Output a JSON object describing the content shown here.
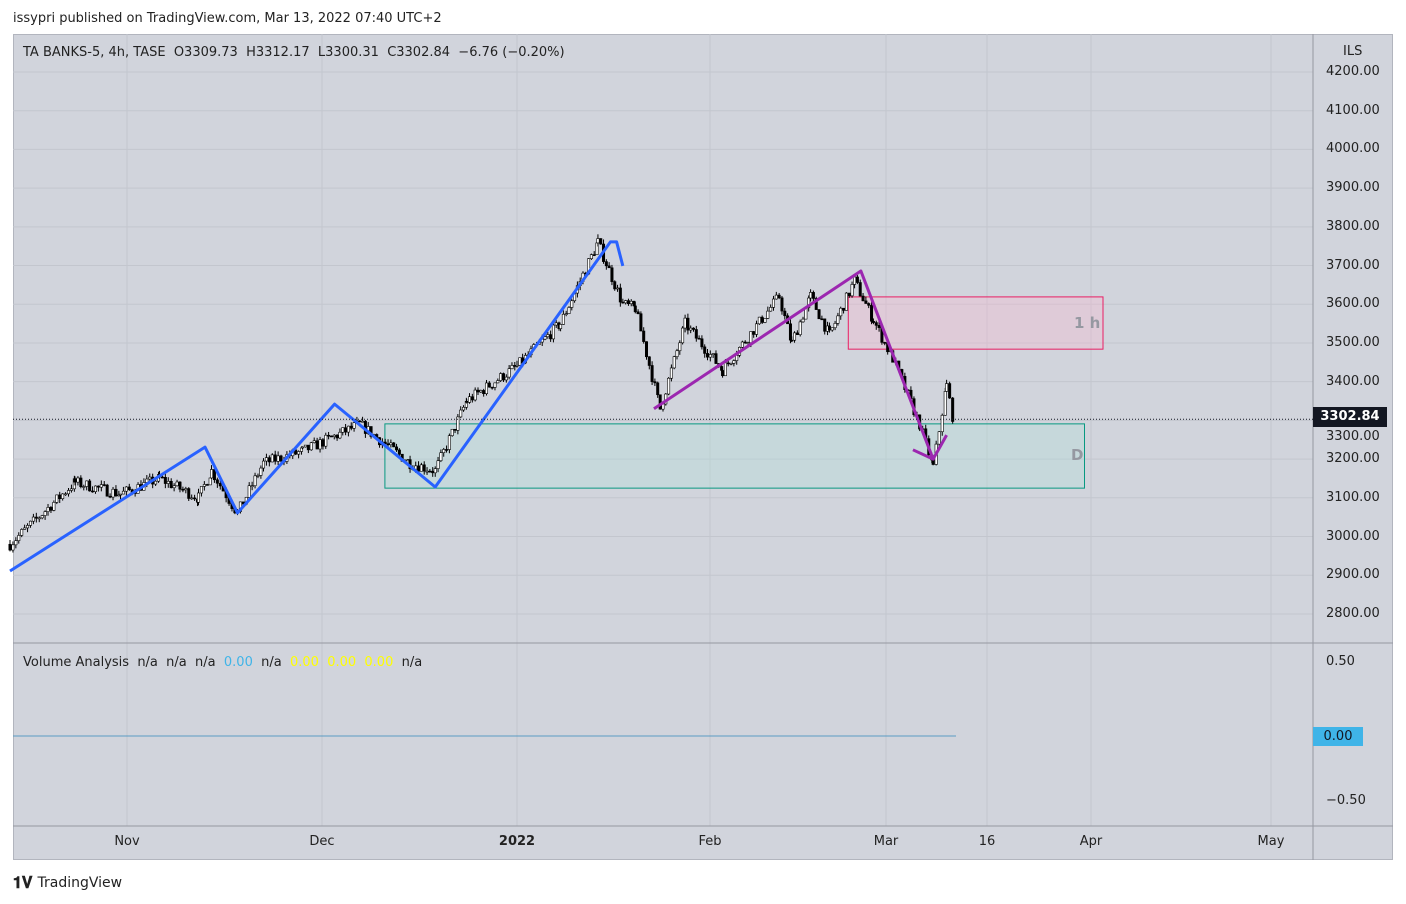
{
  "publish_line": "issypri published on TradingView.com, Mar 13, 2022 07:40 UTC+2",
  "legend": {
    "symbol": "TA BANKS-5, 4h, TASE",
    "open": "O3309.73",
    "high": "H3312.17",
    "low": "L3300.31",
    "close": "C3302.84",
    "change": "−6.76 (−0.20%)"
  },
  "volume_indicator": {
    "name": "Volume Analysis",
    "values": [
      {
        "t": "n/a",
        "c": ""
      },
      {
        "t": "n/a",
        "c": ""
      },
      {
        "t": "n/a",
        "c": ""
      },
      {
        "t": "0.00",
        "c": "blue"
      },
      {
        "t": "n/a",
        "c": ""
      },
      {
        "t": "0.00",
        "c": "yel"
      },
      {
        "t": "0.00",
        "c": "yel"
      },
      {
        "t": "0.00",
        "c": "yel"
      },
      {
        "t": "n/a",
        "c": ""
      }
    ],
    "axis": [
      "0.50",
      "0.00",
      "−0.50"
    ],
    "current": "0.00"
  },
  "price_axis": {
    "currency": "ILS",
    "ticks": [
      "4200.00",
      "4100.00",
      "4000.00",
      "3900.00",
      "3800.00",
      "3700.00",
      "3600.00",
      "3500.00",
      "3400.00",
      "3300.00",
      "3200.00",
      "3100.00",
      "3000.00",
      "2900.00",
      "2800.00"
    ],
    "last_price": "3302.84"
  },
  "time_axis": [
    {
      "label": "Nov",
      "date": "2021-11-01",
      "bold": false
    },
    {
      "label": "Dec",
      "date": "2021-12-01",
      "bold": false
    },
    {
      "label": "2022",
      "date": "2022-01-01",
      "bold": true
    },
    {
      "label": "Feb",
      "date": "2022-02-01",
      "bold": false
    },
    {
      "label": "Mar",
      "date": "2022-03-01",
      "bold": false
    },
    {
      "label": "16",
      "date": "2022-03-16",
      "bold": false
    },
    {
      "label": "Apr",
      "date": "2022-04-01",
      "bold": false
    },
    {
      "label": "May",
      "date": "2022-05-01",
      "bold": false
    }
  ],
  "chart_data": {
    "type": "candlestick",
    "title": "TA BANKS-5, 4h, TASE",
    "ylim": [
      2750,
      4250
    ],
    "price_path": [
      [
        "2021-10-14",
        2980
      ],
      [
        "2021-10-24",
        3140
      ],
      [
        "2021-10-31",
        3110
      ],
      [
        "2021-11-06",
        3150
      ],
      [
        "2021-11-12",
        3100
      ],
      [
        "2021-11-14",
        3170
      ],
      [
        "2021-11-18",
        3060
      ],
      [
        "2021-11-22",
        3190
      ],
      [
        "2021-11-28",
        3220
      ],
      [
        "2021-12-07",
        3290
      ],
      [
        "2021-12-15",
        3190
      ],
      [
        "2021-12-19",
        3170
      ],
      [
        "2021-12-24",
        3350
      ],
      [
        "2022-01-01",
        3440
      ],
      [
        "2022-01-08",
        3550
      ],
      [
        "2022-01-14",
        3760
      ],
      [
        "2022-01-18",
        3600
      ],
      [
        "2022-01-20",
        3590
      ],
      [
        "2022-01-24",
        3330
      ],
      [
        "2022-01-28",
        3550
      ],
      [
        "2022-02-03",
        3430
      ],
      [
        "2022-02-12",
        3620
      ],
      [
        "2022-02-14",
        3500
      ],
      [
        "2022-02-17",
        3620
      ],
      [
        "2022-02-20",
        3520
      ],
      [
        "2022-02-24",
        3660
      ],
      [
        "2022-02-27",
        3560
      ],
      [
        "2022-03-02",
        3460
      ],
      [
        "2022-03-06",
        3290
      ],
      [
        "2022-03-08",
        3180
      ],
      [
        "2022-03-10",
        3390
      ],
      [
        "2022-03-11",
        3302.84
      ]
    ],
    "drawings": {
      "blue_wave": {
        "color": "#2962ff",
        "points": [
          [
            "2021-10-14",
            2911
          ],
          [
            "2021-11-13",
            3231
          ],
          [
            "2021-11-18",
            3061
          ],
          [
            "2021-12-03",
            3342
          ],
          [
            "2021-12-19",
            3128
          ],
          [
            "2022-01-16",
            3761
          ],
          [
            "2022-01-17",
            3761
          ],
          [
            "2022-01-18",
            3699
          ]
        ]
      },
      "purple_wave": {
        "color": "#9c27b0",
        "points": [
          [
            "2022-01-23",
            3330
          ],
          [
            "2022-02-25",
            3686
          ],
          [
            "2022-03-08",
            3200
          ]
        ]
      },
      "purple_hook": {
        "color": "#9c27b0",
        "points": [
          [
            "2022-03-05",
            3224
          ],
          [
            "2022-03-08",
            3200
          ],
          [
            "2022-03-10",
            3262
          ]
        ]
      },
      "zone_1h": {
        "label": "1 h",
        "from": "2022-02-23",
        "to": "2022-04-03",
        "top": 3619,
        "bottom": 3484,
        "border": "#e91e63",
        "fill": "#f8bbd0"
      },
      "zone_D": {
        "label": "D",
        "from": "2021-12-11",
        "to": "2022-03-31",
        "top": 3291,
        "bottom": 3125,
        "border": "#089981",
        "fill": "#b2dfdb"
      }
    }
  },
  "brand": "TradingView"
}
